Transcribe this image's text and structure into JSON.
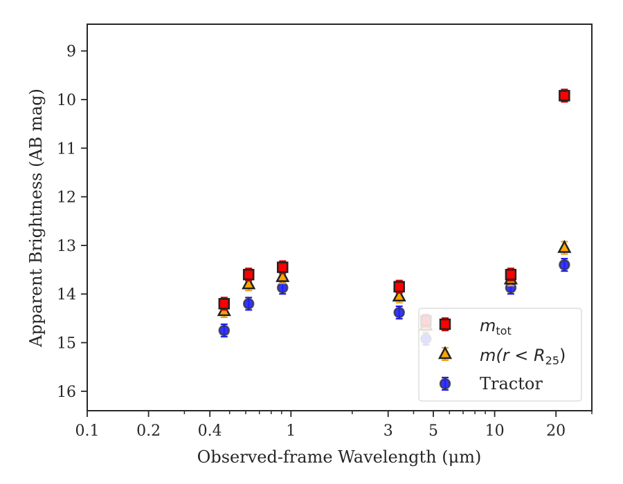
{
  "chart_data": {
    "type": "scatter",
    "title": "",
    "xlabel": "Observed-frame Wavelength (μm)",
    "ylabel": "Apparent Brightness (AB mag)",
    "xscale": "log",
    "xlim": [
      0.1,
      30
    ],
    "ylim": [
      16.4,
      8.45
    ],
    "y_inverted": true,
    "grid": false,
    "legend_position": "lower-right",
    "xticks": [
      {
        "value": 0.1,
        "label": "0.1"
      },
      {
        "value": 0.2,
        "label": "0.2"
      },
      {
        "value": 0.4,
        "label": "0.4"
      },
      {
        "value": 1,
        "label": "1"
      },
      {
        "value": 3,
        "label": "3"
      },
      {
        "value": 5,
        "label": "5"
      },
      {
        "value": 10,
        "label": "10"
      },
      {
        "value": 20,
        "label": "20"
      }
    ],
    "yticks": [
      {
        "value": 9,
        "label": "9"
      },
      {
        "value": 10,
        "label": "10"
      },
      {
        "value": 11,
        "label": "11"
      },
      {
        "value": 12,
        "label": "12"
      },
      {
        "value": 13,
        "label": "13"
      },
      {
        "value": 14,
        "label": "14"
      },
      {
        "value": 15,
        "label": "15"
      },
      {
        "value": 16,
        "label": "16"
      }
    ],
    "series": [
      {
        "id": "mtot",
        "legend_main": "m",
        "legend_sub": "tot",
        "marker": "square",
        "color": "#ff0000",
        "edge_color": "#222222",
        "points": [
          {
            "x": 0.47,
            "y": 14.2
          },
          {
            "x": 0.62,
            "y": 13.6
          },
          {
            "x": 0.91,
            "y": 13.45
          },
          {
            "x": 3.4,
            "y": 13.85
          },
          {
            "x": 4.6,
            "y": 14.55
          },
          {
            "x": 12.0,
            "y": 13.6
          },
          {
            "x": 22.0,
            "y": 9.92
          }
        ]
      },
      {
        "id": "mr25",
        "legend_main": "m(r < R",
        "legend_sub": "25",
        "legend_end": ")",
        "marker": "triangle",
        "color": "#ffa500",
        "edge_color": "#222222",
        "points": [
          {
            "x": 0.47,
            "y": 14.35
          },
          {
            "x": 0.62,
            "y": 13.8
          },
          {
            "x": 0.91,
            "y": 13.65
          },
          {
            "x": 3.4,
            "y": 14.05
          },
          {
            "x": 4.6,
            "y": 14.65
          },
          {
            "x": 12.0,
            "y": 13.7
          },
          {
            "x": 22.0,
            "y": 13.05
          }
        ]
      },
      {
        "id": "tractor",
        "name": "Tractor",
        "marker": "circle",
        "color": "#1f1fff",
        "edge_color": "#333333",
        "points": [
          {
            "x": 0.47,
            "y": 14.75
          },
          {
            "x": 0.62,
            "y": 14.2
          },
          {
            "x": 0.91,
            "y": 13.87
          },
          {
            "x": 3.4,
            "y": 14.38
          },
          {
            "x": 4.6,
            "y": 14.92
          },
          {
            "x": 12.0,
            "y": 13.87
          },
          {
            "x": 22.0,
            "y": 13.4
          }
        ]
      }
    ]
  }
}
